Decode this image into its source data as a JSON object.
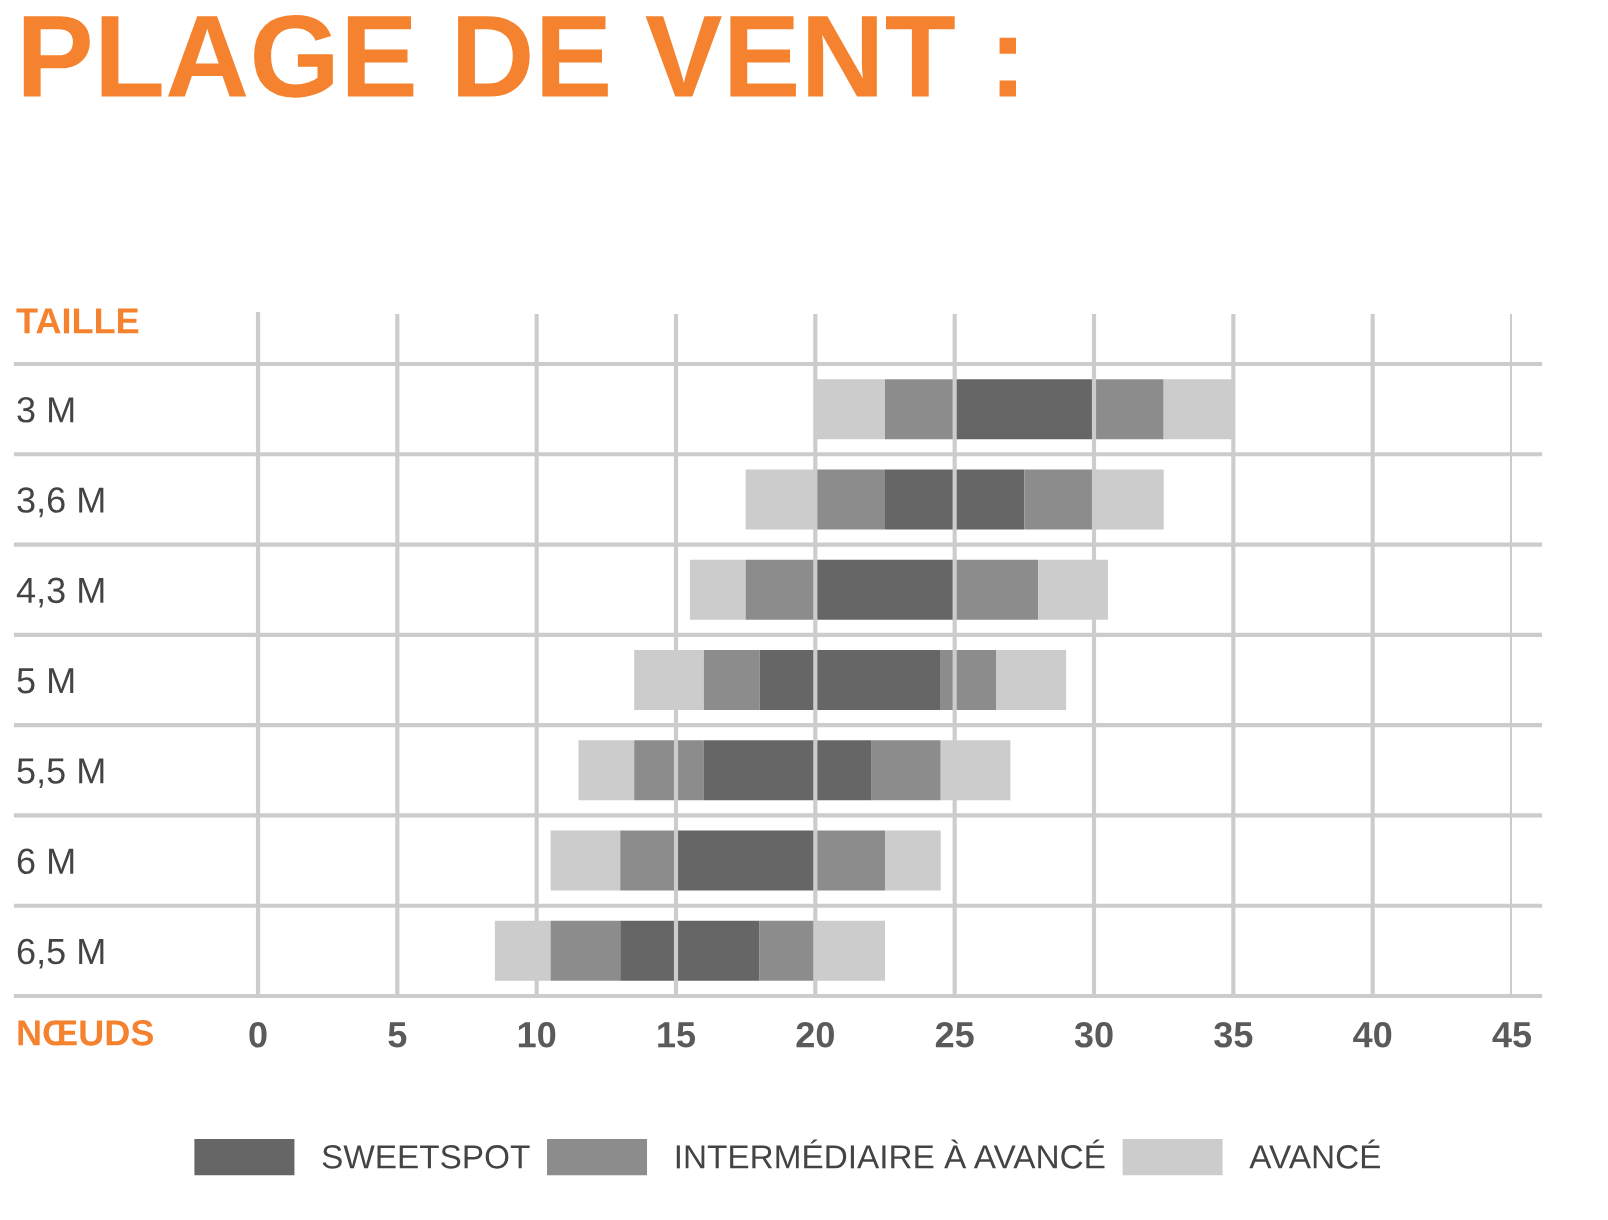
{
  "chart_data": {
    "type": "bar",
    "orientation": "horizontal",
    "title": "PLAGE DE VENT :",
    "ylabel": "TAILLE",
    "xlabel": "NŒUDS",
    "categories": [
      "3 M",
      "3,6 M",
      "4,3 M",
      "5 M",
      "5,5 M",
      "6 M",
      "6,5 M"
    ],
    "series": [
      {
        "color": "#cccccc",
        "base": [
          20,
          17.5,
          15.5,
          13.5,
          11.5,
          10.5,
          8.5
        ],
        "values": [
          2.5,
          2.5,
          2,
          2.5,
          2,
          2.5,
          2
        ]
      },
      {
        "color": "#8c8c8c",
        "base": [
          22.5,
          20,
          17.5,
          16,
          13.5,
          13,
          10.5
        ],
        "values": [
          2.5,
          2.5,
          2.5,
          2,
          2.5,
          2,
          2.5
        ]
      },
      {
        "name": "SWEETSPOT",
        "color": "#666666",
        "base": [
          25,
          22.5,
          20,
          18,
          16,
          15,
          13
        ],
        "values": [
          5,
          5,
          5,
          6.5,
          6,
          5,
          5
        ]
      },
      {
        "name": "INTERMÉDIAIRE À AVANCÉ",
        "color": "#8c8c8c",
        "base": [
          30,
          27.5,
          25,
          24.5,
          22,
          20,
          18
        ],
        "values": [
          2.5,
          2.5,
          3,
          2,
          2.5,
          2.5,
          2
        ]
      },
      {
        "name": "AVANCÉ",
        "color": "#cccccc",
        "base": [
          32.5,
          30,
          28,
          26.5,
          24.5,
          22.5,
          20
        ],
        "values": [
          2.5,
          2.5,
          2.5,
          2.5,
          2.5,
          2,
          2.5
        ]
      }
    ],
    "xlim": [
      0,
      45
    ],
    "xticks": [
      0,
      5,
      10,
      15,
      20,
      25,
      30,
      35,
      40,
      45
    ],
    "grid": true,
    "legend": "bottom"
  }
}
